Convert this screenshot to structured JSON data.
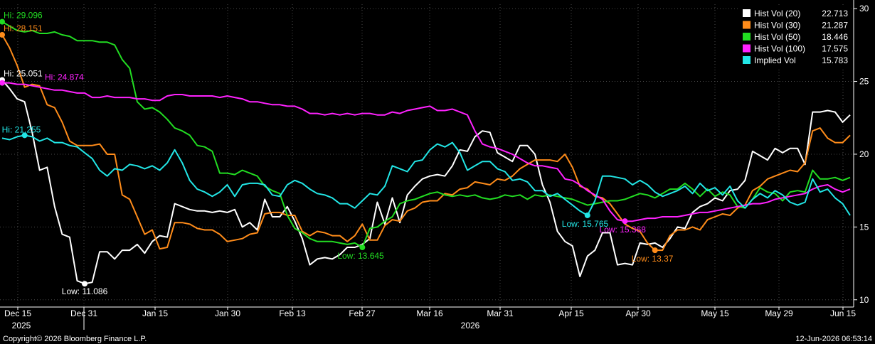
{
  "chart_data": {
    "type": "line",
    "x_ticks": [
      "Dec 15",
      "Dec 31",
      "Jan 15",
      "Jan 30",
      "Feb 13",
      "Feb 27",
      "Mar 16",
      "Mar 31",
      "Apr 15",
      "Apr 30",
      "May 15",
      "May 29",
      "Jun 15"
    ],
    "year_labels": [
      "2025",
      "2026"
    ],
    "y_ticks": [
      10,
      15,
      20,
      25,
      30
    ],
    "ylim": [
      9.5,
      30.3
    ],
    "grid": true,
    "legend_position": "top-right",
    "series": [
      {
        "name": "Hist Vol (20)",
        "last": "22.713",
        "color": "#ffffff",
        "hi_label": "Hi: 25.051",
        "low_label": "Low: 11.086",
        "values": [
          25.1,
          24.5,
          23.8,
          23.6,
          21.5,
          18.9,
          19.1,
          16.4,
          14.5,
          14.3,
          11.3,
          11.1,
          11.2,
          13.3,
          13.3,
          12.8,
          13.4,
          13.4,
          13.8,
          13.2,
          14.0,
          14.4,
          14.3,
          16.6,
          16.4,
          16.2,
          16.1,
          16.1,
          16.0,
          16.1,
          16.0,
          16.2,
          15.0,
          15.3,
          14.8,
          16.9,
          15.7,
          15.7,
          16.4,
          15.4,
          14.2,
          12.4,
          12.8,
          12.9,
          12.8,
          13.1,
          13.6,
          13.6,
          13.8,
          14.2,
          16.7,
          15.2,
          17.0,
          15.3,
          17.2,
          17.8,
          18.3,
          18.5,
          18.6,
          18.5,
          19.2,
          20.3,
          20.2,
          21.2,
          21.6,
          21.5,
          20.1,
          19.8,
          19.5,
          20.6,
          20.6,
          20.0,
          17.9,
          16.7,
          14.7,
          14.0,
          13.7,
          11.6,
          13.0,
          13.4,
          14.6,
          14.6,
          12.4,
          12.5,
          12.4,
          13.9,
          13.8,
          13.9,
          13.6,
          14.2,
          15.0,
          14.9,
          16.0,
          16.4,
          16.6,
          17.0,
          16.8,
          17.5,
          17.6,
          18.2,
          20.2,
          19.9,
          19.6,
          20.4,
          20.1,
          20.4,
          20.4,
          19.3,
          22.9,
          22.9,
          23.0,
          22.9,
          22.2,
          22.7
        ]
      },
      {
        "name": "Hist Vol (30)",
        "last": "21.287",
        "color": "#ff8c1a",
        "hi_label": "Hi: 28.151",
        "low_label": "Low: 13.37",
        "values": [
          28.2,
          27.3,
          26.1,
          24.6,
          24.8,
          24.7,
          23.4,
          23.2,
          22.2,
          20.9,
          20.6,
          20.6,
          20.6,
          20.7,
          20.0,
          20.0,
          17.2,
          16.9,
          15.7,
          14.5,
          14.8,
          13.5,
          13.6,
          15.3,
          15.3,
          15.2,
          14.9,
          14.8,
          14.8,
          14.5,
          14.0,
          14.1,
          14.2,
          14.5,
          14.6,
          15.9,
          16.0,
          16.0,
          15.8,
          15.8,
          14.7,
          14.4,
          14.7,
          14.6,
          14.4,
          14.4,
          14.0,
          14.4,
          15.2,
          14.1,
          14.1,
          15.1,
          15.5,
          15.4,
          16.1,
          16.3,
          16.7,
          16.8,
          16.8,
          17.3,
          17.2,
          17.6,
          17.7,
          18.1,
          18.0,
          17.9,
          18.3,
          18.2,
          18.5,
          19.0,
          19.3,
          19.6,
          19.6,
          19.6,
          19.5,
          20.0,
          19.1,
          17.8,
          17.6,
          17.1,
          17.0,
          16.6,
          15.9,
          15.2,
          14.9,
          14.7,
          13.9,
          13.4,
          13.4,
          14.4,
          14.8,
          14.8,
          15.0,
          14.8,
          15.5,
          15.7,
          15.9,
          15.8,
          16.3,
          16.5,
          17.5,
          17.8,
          18.3,
          18.5,
          18.7,
          18.9,
          18.8,
          19.4,
          21.6,
          21.8,
          21.1,
          20.8,
          20.8,
          21.3
        ]
      },
      {
        "name": "Hist Vol (50)",
        "last": "18.446",
        "color": "#22dd22",
        "hi_label": "Hi: 29.096",
        "low_label": "Low: 13.645",
        "values": [
          29.1,
          28.8,
          28.5,
          28.4,
          28.5,
          28.3,
          28.3,
          28.4,
          28.2,
          28.1,
          27.8,
          27.8,
          27.8,
          27.7,
          27.7,
          27.5,
          26.5,
          25.9,
          23.6,
          23.1,
          23.2,
          22.9,
          22.4,
          21.8,
          21.6,
          21.3,
          20.6,
          20.5,
          20.2,
          18.7,
          18.7,
          18.6,
          18.9,
          18.7,
          18.5,
          17.8,
          17.5,
          17.3,
          15.8,
          14.9,
          14.6,
          14.2,
          14.0,
          14.0,
          14.0,
          13.9,
          13.8,
          13.9,
          13.6,
          14.9,
          15.0,
          15.4,
          15.7,
          16.6,
          16.8,
          16.9,
          17.1,
          17.3,
          17.4,
          17.2,
          17.1,
          17.2,
          17.1,
          17.2,
          17.0,
          16.9,
          17.0,
          17.2,
          17.1,
          17.2,
          16.9,
          17.2,
          17.1,
          17.2,
          17.1,
          17.0,
          16.9,
          16.7,
          16.5,
          16.6,
          16.7,
          16.8,
          16.8,
          16.9,
          17.1,
          17.3,
          17.2,
          17.0,
          17.3,
          17.6,
          17.6,
          18.0,
          17.6,
          17.1,
          17.6,
          17.1,
          17.4,
          17.2,
          16.4,
          16.3,
          16.9,
          17.7,
          17.4,
          17.3,
          16.8,
          17.4,
          17.5,
          17.4,
          18.9,
          18.3,
          18.3,
          18.4,
          18.2,
          18.4
        ]
      },
      {
        "name": "Hist Vol (100)",
        "last": "17.575",
        "color": "#ff22ff",
        "hi_label": "Hi: 24.874",
        "low_label": "Low: 15.368",
        "values": [
          24.9,
          24.9,
          24.8,
          24.8,
          24.7,
          24.6,
          24.5,
          24.4,
          24.4,
          24.3,
          24.2,
          24.2,
          23.9,
          23.9,
          24.0,
          23.9,
          23.9,
          23.9,
          23.8,
          23.8,
          23.7,
          23.7,
          24.0,
          24.1,
          24.1,
          24.0,
          24.0,
          24.0,
          24.0,
          23.9,
          24.0,
          23.9,
          23.8,
          23.6,
          23.6,
          23.5,
          23.4,
          23.4,
          23.3,
          23.3,
          23.1,
          22.8,
          22.8,
          22.7,
          22.8,
          22.7,
          22.8,
          22.7,
          22.8,
          22.8,
          22.7,
          22.7,
          22.9,
          22.8,
          23.0,
          23.1,
          23.2,
          23.3,
          23.0,
          23.0,
          23.1,
          22.9,
          22.7,
          21.6,
          20.7,
          20.5,
          20.4,
          20.2,
          20.0,
          19.7,
          19.4,
          19.2,
          19.2,
          19.1,
          19.0,
          18.3,
          18.2,
          17.9,
          17.5,
          17.2,
          16.9,
          16.1,
          15.5,
          15.4,
          15.4,
          15.5,
          15.6,
          15.6,
          15.7,
          15.7,
          15.7,
          15.8,
          15.9,
          16.0,
          16.0,
          16.1,
          16.2,
          16.3,
          16.4,
          16.5,
          16.6,
          16.6,
          16.7,
          16.9,
          17.0,
          17.1,
          17.2,
          17.3,
          17.6,
          17.8,
          17.9,
          17.6,
          17.4,
          17.6
        ]
      },
      {
        "name": "Implied Vol",
        "last": "15.783",
        "color": "#22e6e6",
        "hi_label": "Hi: 21.255",
        "low_label": "Low: 15.765",
        "values": [
          21.1,
          21.0,
          21.2,
          21.3,
          21.2,
          20.9,
          21.1,
          20.8,
          20.8,
          20.6,
          20.5,
          20.1,
          19.7,
          18.9,
          18.5,
          19.0,
          18.9,
          19.3,
          19.2,
          19.0,
          19.2,
          18.9,
          19.4,
          20.3,
          19.4,
          18.2,
          17.6,
          17.4,
          17.1,
          17.4,
          17.9,
          17.1,
          17.9,
          18.0,
          18.0,
          17.9,
          17.2,
          17.1,
          17.9,
          18.2,
          18.0,
          17.6,
          17.3,
          17.2,
          17.0,
          16.6,
          16.6,
          16.3,
          16.8,
          17.3,
          17.2,
          17.8,
          19.2,
          19.0,
          18.8,
          19.5,
          19.6,
          20.3,
          20.7,
          20.5,
          20.8,
          20.1,
          18.9,
          19.2,
          19.5,
          19.5,
          19.0,
          18.8,
          18.2,
          18.3,
          18.1,
          17.5,
          17.5,
          17.1,
          17.3,
          16.9,
          16.5,
          16.1,
          15.8,
          16.8,
          18.5,
          18.5,
          18.4,
          18.3,
          17.9,
          18.2,
          17.9,
          17.4,
          17.1,
          17.3,
          17.5,
          17.8,
          17.3,
          18.0,
          17.5,
          17.7,
          17.2,
          17.8,
          16.8,
          16.3,
          16.9,
          17.3,
          17.0,
          17.5,
          17.2,
          16.7,
          16.5,
          16.7,
          18.3,
          17.4,
          17.6,
          17.0,
          16.6,
          15.8
        ]
      }
    ]
  },
  "footer": {
    "copyright": "Copyright© 2026 Bloomberg Finance L.P.",
    "timestamp": "12-Jun-2026 06:53:14"
  }
}
